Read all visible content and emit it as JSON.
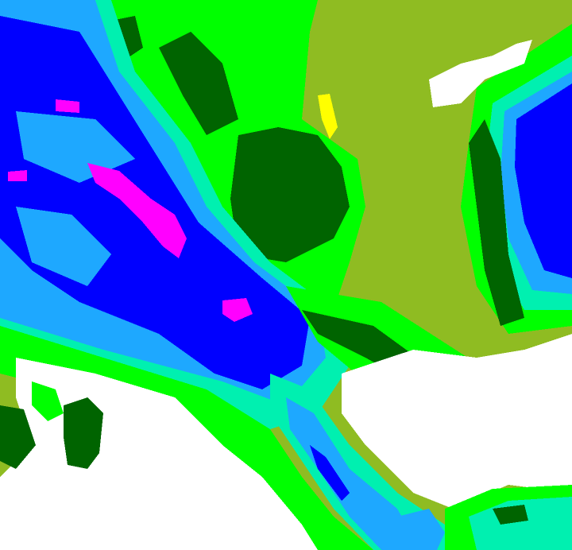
{
  "map": {
    "palette": {
      "olive": "#8fbc22",
      "white": "#ffffff",
      "yellow": "#ffff00",
      "green": "#00ff00",
      "dark_green": "#006400",
      "cyan": "#00f0b0",
      "light_blue": "#1ea8ff",
      "blue": "#0000ff",
      "magenta": "#ff00ff"
    }
  }
}
